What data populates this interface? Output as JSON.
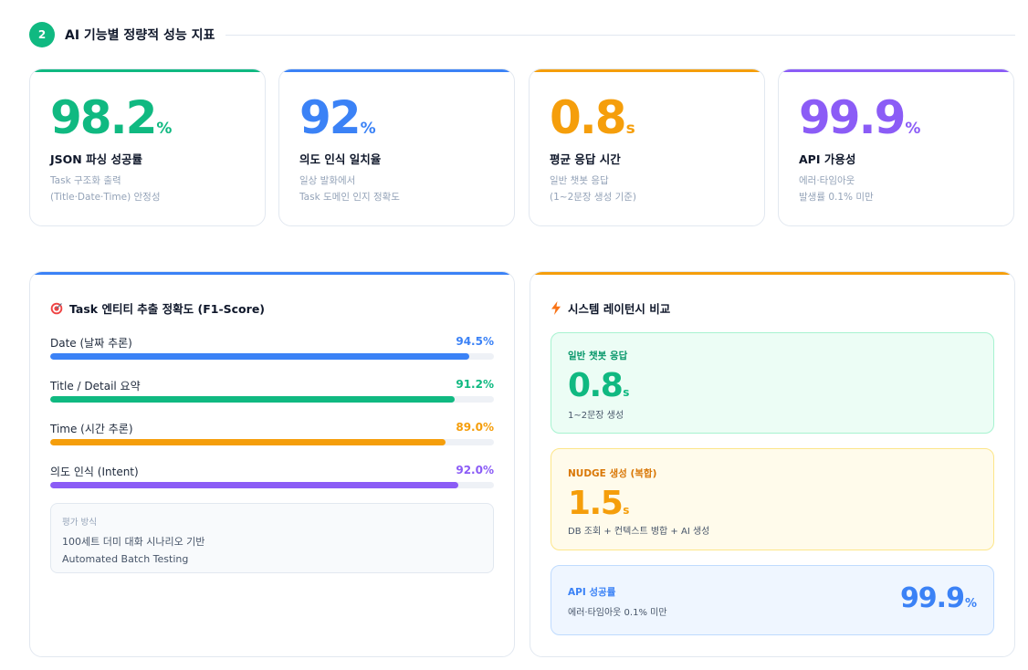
{
  "section": {
    "number": "2",
    "title": "AI 기능별 정량적 성능 지표"
  },
  "stats": [
    {
      "value": "98.2",
      "unit": "%",
      "label": "JSON 파싱 성공률",
      "desc1": "Task 구조화 출력",
      "desc2": "(Title·Date·Time) 안정성",
      "color": "#10b981"
    },
    {
      "value": "92",
      "unit": "%",
      "label": "의도 인식 일치율",
      "desc1": "일상 발화에서",
      "desc2": "Task 도메인 인지 정확도",
      "color": "#3b82f6"
    },
    {
      "value": "0.8",
      "unit": "s",
      "label": "평균 응답 시간",
      "desc1": "일반 챗봇 응답",
      "desc2": "(1~2문장 생성 기준)",
      "color": "#f59e0b"
    },
    {
      "value": "99.9",
      "unit": "%",
      "label": "API 가용성",
      "desc1": "에러·타임아웃",
      "desc2": "발생률 0.1% 미만",
      "color": "#8b5cf6"
    }
  ],
  "f1_panel": {
    "title": "Task 엔티티 추출 정확도 (F1-Score)",
    "icon": "target-icon",
    "rows": [
      {
        "label": "Date (날짜 추론)",
        "value": "94.5%",
        "percent": 94.5,
        "color": "#3b82f6"
      },
      {
        "label": "Title / Detail 요약",
        "value": "91.2%",
        "percent": 91.2,
        "color": "#10b981"
      },
      {
        "label": "Time (시간 추론)",
        "value": "89.0%",
        "percent": 89.0,
        "color": "#f59e0b"
      },
      {
        "label": "의도 인식 (Intent)",
        "value": "92.0%",
        "percent": 92.0,
        "color": "#8b5cf6"
      }
    ],
    "method": {
      "title": "평가 방식",
      "line1": "100세트 더미 대화 시나리오 기반",
      "line2": "Automated Batch Testing"
    }
  },
  "latency_panel": {
    "title": "시스템 레이턴시 비교",
    "icon": "lightning-icon",
    "chat": {
      "name": "일반 챗봇 응답",
      "value": "0.8",
      "unit": "s",
      "desc": "1~2문장 생성"
    },
    "nudge": {
      "name": "NUDGE 생성 (복합)",
      "value": "1.5",
      "unit": "s",
      "desc": "DB 조회 + 컨텍스트 병합 + AI 생성"
    },
    "api": {
      "name": "API 성공률",
      "desc": "에러·타임아웃 0.1% 미만",
      "value": "99.9",
      "unit": "%"
    }
  },
  "colors": {
    "green": "#10b981",
    "blue": "#3b82f6",
    "orange": "#f59e0b",
    "purple": "#8b5cf6"
  }
}
